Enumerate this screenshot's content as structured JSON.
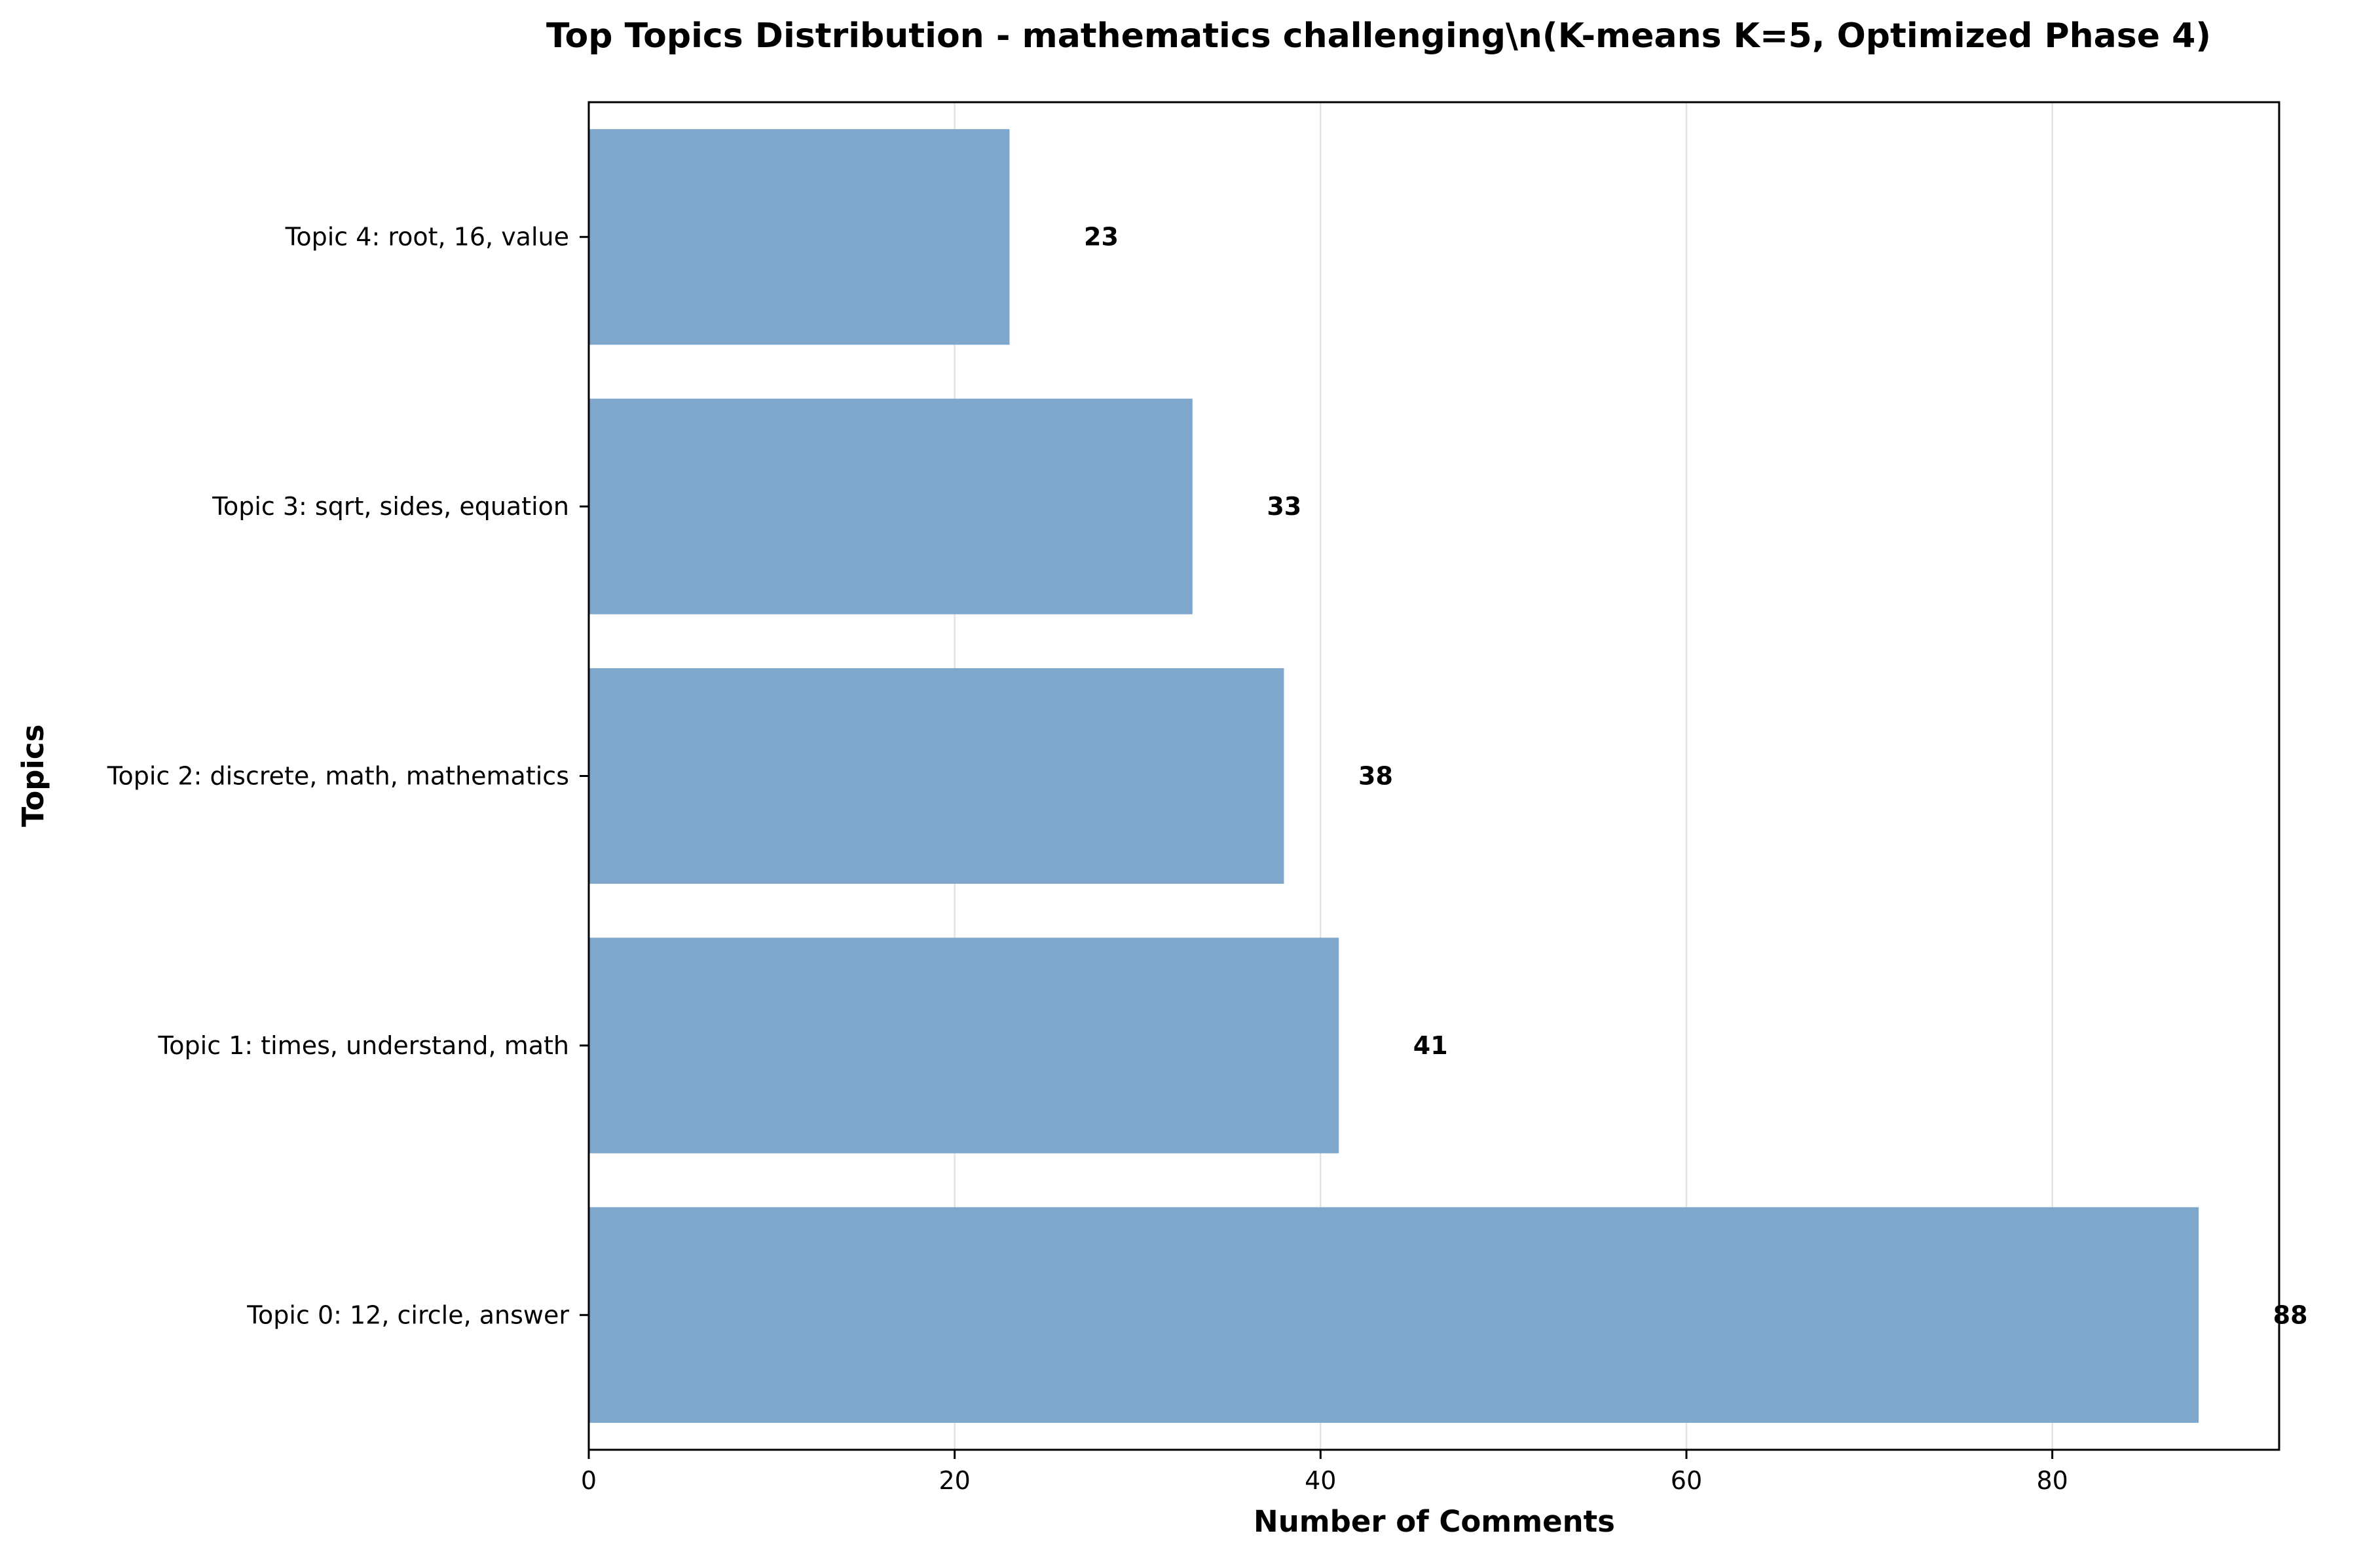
{
  "chart_data": {
    "type": "bar",
    "orientation": "horizontal",
    "title": "Top Topics Distribution - mathematics challenging\\n(K-means K=5, Optimized Phase 4)",
    "xlabel": "Number of Comments",
    "ylabel": "Topics",
    "categories": [
      "Topic 0: 12, circle, answer",
      "Topic 1: times, understand, math",
      "Topic 2: discrete, math, mathematics",
      "Topic 3: sqrt, sides, equation",
      "Topic 4: root, 16, value"
    ],
    "values": [
      88,
      41,
      38,
      33,
      23
    ],
    "data_labels": [
      "88",
      "41",
      "38",
      "33",
      "23"
    ],
    "xlim": [
      0,
      92.4
    ],
    "xticks": [
      0,
      20,
      40,
      60,
      80
    ],
    "xtick_labels": [
      "0",
      "20",
      "40",
      "60",
      "80"
    ],
    "grid": "x-axis, light gray",
    "bar_color": "#7ea7cb",
    "legend": "none"
  }
}
